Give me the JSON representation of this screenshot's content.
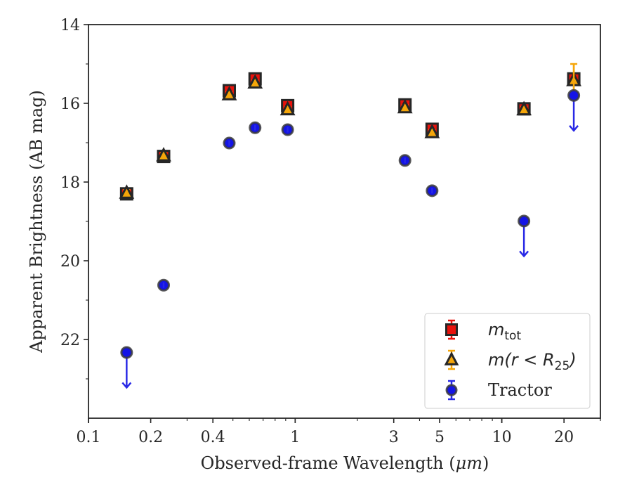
{
  "chart_data": {
    "type": "scatter",
    "title": "",
    "xlabel": "Observed-frame Wavelength (",
    "xlabel_unit": "μm",
    "xlabel_close": ")",
    "ylabel": "Apparent Brightness (AB mag)",
    "xscale": "log",
    "xlim": [
      0.1,
      30
    ],
    "ylim": [
      24,
      14
    ],
    "y_inverted": true,
    "grid": false,
    "legend_position": "bottom-right",
    "xticks": [
      {
        "value": 0.1,
        "label": "0.1"
      },
      {
        "value": 0.2,
        "label": "0.2"
      },
      {
        "value": 0.4,
        "label": "0.4"
      },
      {
        "value": 1,
        "label": "1"
      },
      {
        "value": 3,
        "label": "3"
      },
      {
        "value": 5,
        "label": "5"
      },
      {
        "value": 10,
        "label": "10"
      },
      {
        "value": 20,
        "label": "20"
      }
    ],
    "yticks": [
      {
        "value": 14,
        "label": "14"
      },
      {
        "value": 16,
        "label": "16"
      },
      {
        "value": 18,
        "label": "18"
      },
      {
        "value": 20,
        "label": "20"
      },
      {
        "value": 22,
        "label": "22"
      }
    ],
    "series": [
      {
        "key": "m_tot",
        "name_main": "m",
        "name_sub": "tot",
        "marker": "square",
        "fill": "#e8120c",
        "edge": "#262626",
        "errcolor": "#e8120c",
        "points": [
          {
            "x": 0.153,
            "y": 18.3,
            "err": 0.08
          },
          {
            "x": 0.231,
            "y": 17.35,
            "err": 0.06
          },
          {
            "x": 0.48,
            "y": 15.68,
            "err": 0.12
          },
          {
            "x": 0.64,
            "y": 15.38,
            "err": 0.12
          },
          {
            "x": 0.92,
            "y": 16.06,
            "err": 0.12
          },
          {
            "x": 3.4,
            "y": 16.04,
            "err": 0.12
          },
          {
            "x": 4.6,
            "y": 16.66,
            "err": 0.12
          },
          {
            "x": 12.8,
            "y": 16.14,
            "err": 0.1
          },
          {
            "x": 22.3,
            "y": 15.38,
            "err": 0.12
          }
        ]
      },
      {
        "key": "m_r25",
        "name_main": "m",
        "name_rest": "(r < R",
        "name_sub": "25",
        "name_close": ")",
        "marker": "triangle",
        "fill": "#f5a60a",
        "edge": "#262626",
        "errcolor": "#f5a60a",
        "points": [
          {
            "x": 0.153,
            "y": 18.28,
            "err": 0.08
          },
          {
            "x": 0.231,
            "y": 17.33,
            "err": 0.06
          },
          {
            "x": 0.48,
            "y": 15.78,
            "err": 0.06
          },
          {
            "x": 0.64,
            "y": 15.48,
            "err": 0.06
          },
          {
            "x": 0.92,
            "y": 16.16,
            "err": 0.06
          },
          {
            "x": 3.4,
            "y": 16.11,
            "err": 0.06
          },
          {
            "x": 4.6,
            "y": 16.74,
            "err": 0.06
          },
          {
            "x": 12.8,
            "y": 16.16,
            "err": 0.06
          },
          {
            "x": 22.3,
            "y": 15.42,
            "err": 0.42
          }
        ]
      },
      {
        "key": "tractor",
        "name": "Tractor",
        "marker": "circle",
        "fill": "#1414e6",
        "edge": "#3c3c3c",
        "errcolor": "#2828e6",
        "points": [
          {
            "x": 0.153,
            "y": 22.33,
            "err": 0.06,
            "upper_limit": true
          },
          {
            "x": 0.231,
            "y": 20.62,
            "err": 0.06
          },
          {
            "x": 0.48,
            "y": 17.01,
            "err": 0.06
          },
          {
            "x": 0.64,
            "y": 16.62,
            "err": 0.06
          },
          {
            "x": 0.92,
            "y": 16.67,
            "err": 0.06
          },
          {
            "x": 3.4,
            "y": 17.45,
            "err": 0.06
          },
          {
            "x": 4.6,
            "y": 18.22,
            "err": 0.06
          },
          {
            "x": 12.8,
            "y": 18.99,
            "err": 0.06,
            "upper_limit": true
          },
          {
            "x": 22.3,
            "y": 15.8,
            "err": 0.06,
            "upper_limit": true
          }
        ]
      }
    ]
  }
}
